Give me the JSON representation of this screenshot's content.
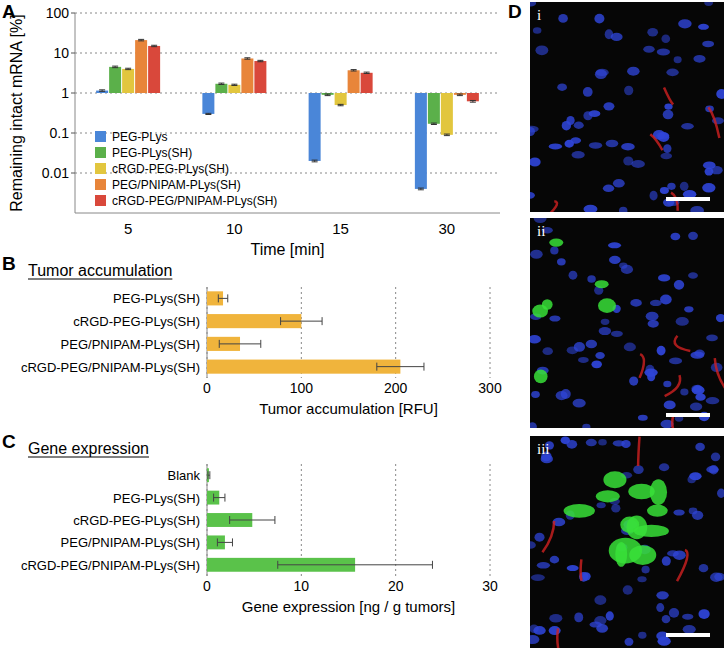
{
  "chart_data": [
    {
      "type": "bar",
      "annotations": [
        "A"
      ],
      "categories": [
        "5",
        "10",
        "15",
        "30"
      ],
      "x_label": "Time [min]",
      "y_label": "Remaining intact mRNA [%]",
      "log": "y",
      "ylim": [
        0.001,
        100
      ],
      "yticks": [
        0.01,
        0.1,
        1,
        10,
        100
      ],
      "grid": true,
      "legend": "bottom-left",
      "series": [
        {
          "name": "PEG-PLys",
          "color": "#4a86d8",
          "values": [
            1.15,
            0.3,
            0.02,
            0.004
          ],
          "errors": [
            0.05,
            0.01,
            0.001,
            0.0002
          ]
        },
        {
          "name": "PEG-PLys(SH)",
          "color": "#5bb04a",
          "values": [
            4.5,
            1.7,
            0.9,
            0.17
          ],
          "errors": [
            0.2,
            0.07,
            0.04,
            0.007
          ]
        },
        {
          "name": "cRGD-PEG-PLys(SH)",
          "color": "#e2c63e",
          "values": [
            4.0,
            1.6,
            0.5,
            0.09
          ],
          "errors": [
            0.16,
            0.06,
            0.02,
            0.004
          ]
        },
        {
          "name": "PEG/PNIPAM-PLys(SH)",
          "color": "#e8853a",
          "values": [
            21,
            7.3,
            3.7,
            0.9
          ],
          "errors": [
            0.9,
            0.3,
            0.15,
            0.04
          ]
        },
        {
          "name": "cRGD-PEG/PNIPAM-PLys(SH)",
          "color": "#d9483b",
          "values": [
            15,
            6.3,
            3.2,
            0.62
          ],
          "errors": [
            0.6,
            0.25,
            0.13,
            0.03
          ]
        }
      ]
    },
    {
      "type": "bar",
      "orientation": "horizontal",
      "title": "Tumor accumulation",
      "annotations": [
        "B"
      ],
      "categories": [
        "PEG-PLys(SH)",
        "cRGD-PEG-PLys(SH)",
        "PEG/PNIPAM-PLys(SH)",
        "cRGD-PEG/PNIPAM-PLys(SH)"
      ],
      "values": [
        17,
        100,
        35,
        205
      ],
      "errors": [
        5,
        22,
        22,
        25
      ],
      "color": "#f0b43c",
      "x_label": "Tumor accumulation [RFU]",
      "xlim": [
        0,
        300
      ],
      "xticks": [
        0,
        100,
        200,
        300
      ],
      "grid": true
    },
    {
      "type": "bar",
      "orientation": "horizontal",
      "title": "Gene expression",
      "annotations": [
        "C"
      ],
      "categories": [
        "Blank",
        "PEG-PLys(SH)",
        "cRGD-PEG-PLys(SH)",
        "PEG/PNIPAM-PLys(SH)",
        "cRGD-PEG/PNIPAM-PLys(SH)"
      ],
      "values": [
        0.2,
        1.3,
        4.8,
        1.9,
        15.7
      ],
      "errors": [
        0.1,
        0.6,
        2.4,
        0.8,
        8.2
      ],
      "color": "#5ac24a",
      "x_label": "Gene expression [ng / g tumors]",
      "xlim": [
        0,
        30
      ],
      "xticks": [
        0,
        10,
        20,
        30
      ],
      "grid": true
    }
  ],
  "image_panel": {
    "label": "D",
    "subpanels": [
      "i",
      "ii",
      "iii"
    ]
  }
}
